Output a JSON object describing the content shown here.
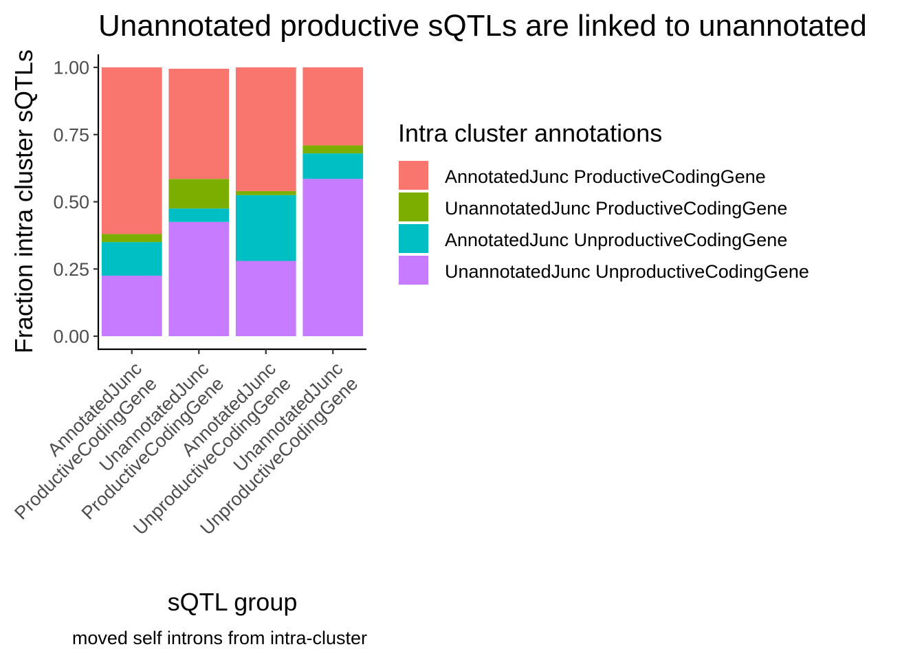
{
  "chart_data": {
    "type": "bar",
    "stacked": true,
    "title": "Unannotated productive sQTLs are linked to unannotated",
    "xlabel": "sQTL group",
    "ylabel": "Fraction intra cluster sQTLs",
    "caption": "moved self introns from intra-cluster",
    "ylim": [
      0,
      1
    ],
    "yticks": [
      "0.00",
      "0.25",
      "0.50",
      "0.75",
      "1.00"
    ],
    "categories": [
      [
        "AnnotatedJunc",
        "ProductiveCodingGene"
      ],
      [
        "UnannotatedJunc",
        "ProductiveCodingGene"
      ],
      [
        "AnnotatedJunc",
        "UnproductiveCodingGene"
      ],
      [
        "UnannotatedJunc",
        "UnproductiveCodingGene"
      ]
    ],
    "legend": {
      "title": "Intra cluster annotations",
      "position": "right"
    },
    "series": [
      {
        "name": "AnnotatedJunc ProductiveCodingGene",
        "color": "#F8766D",
        "values": [
          0.62,
          0.41,
          0.46,
          0.29
        ]
      },
      {
        "name": "UnannotatedJunc ProductiveCodingGene",
        "color": "#7CAE00",
        "values": [
          0.03,
          0.11,
          0.015,
          0.03
        ]
      },
      {
        "name": "AnnotatedJunc UnproductiveCodingGene",
        "color": "#00BFC4",
        "values": [
          0.125,
          0.05,
          0.245,
          0.095
        ]
      },
      {
        "name": "UnannotatedJunc UnproductiveCodingGene",
        "color": "#C77CFF",
        "values": [
          0.225,
          0.425,
          0.28,
          0.585
        ]
      }
    ],
    "grid": false
  }
}
